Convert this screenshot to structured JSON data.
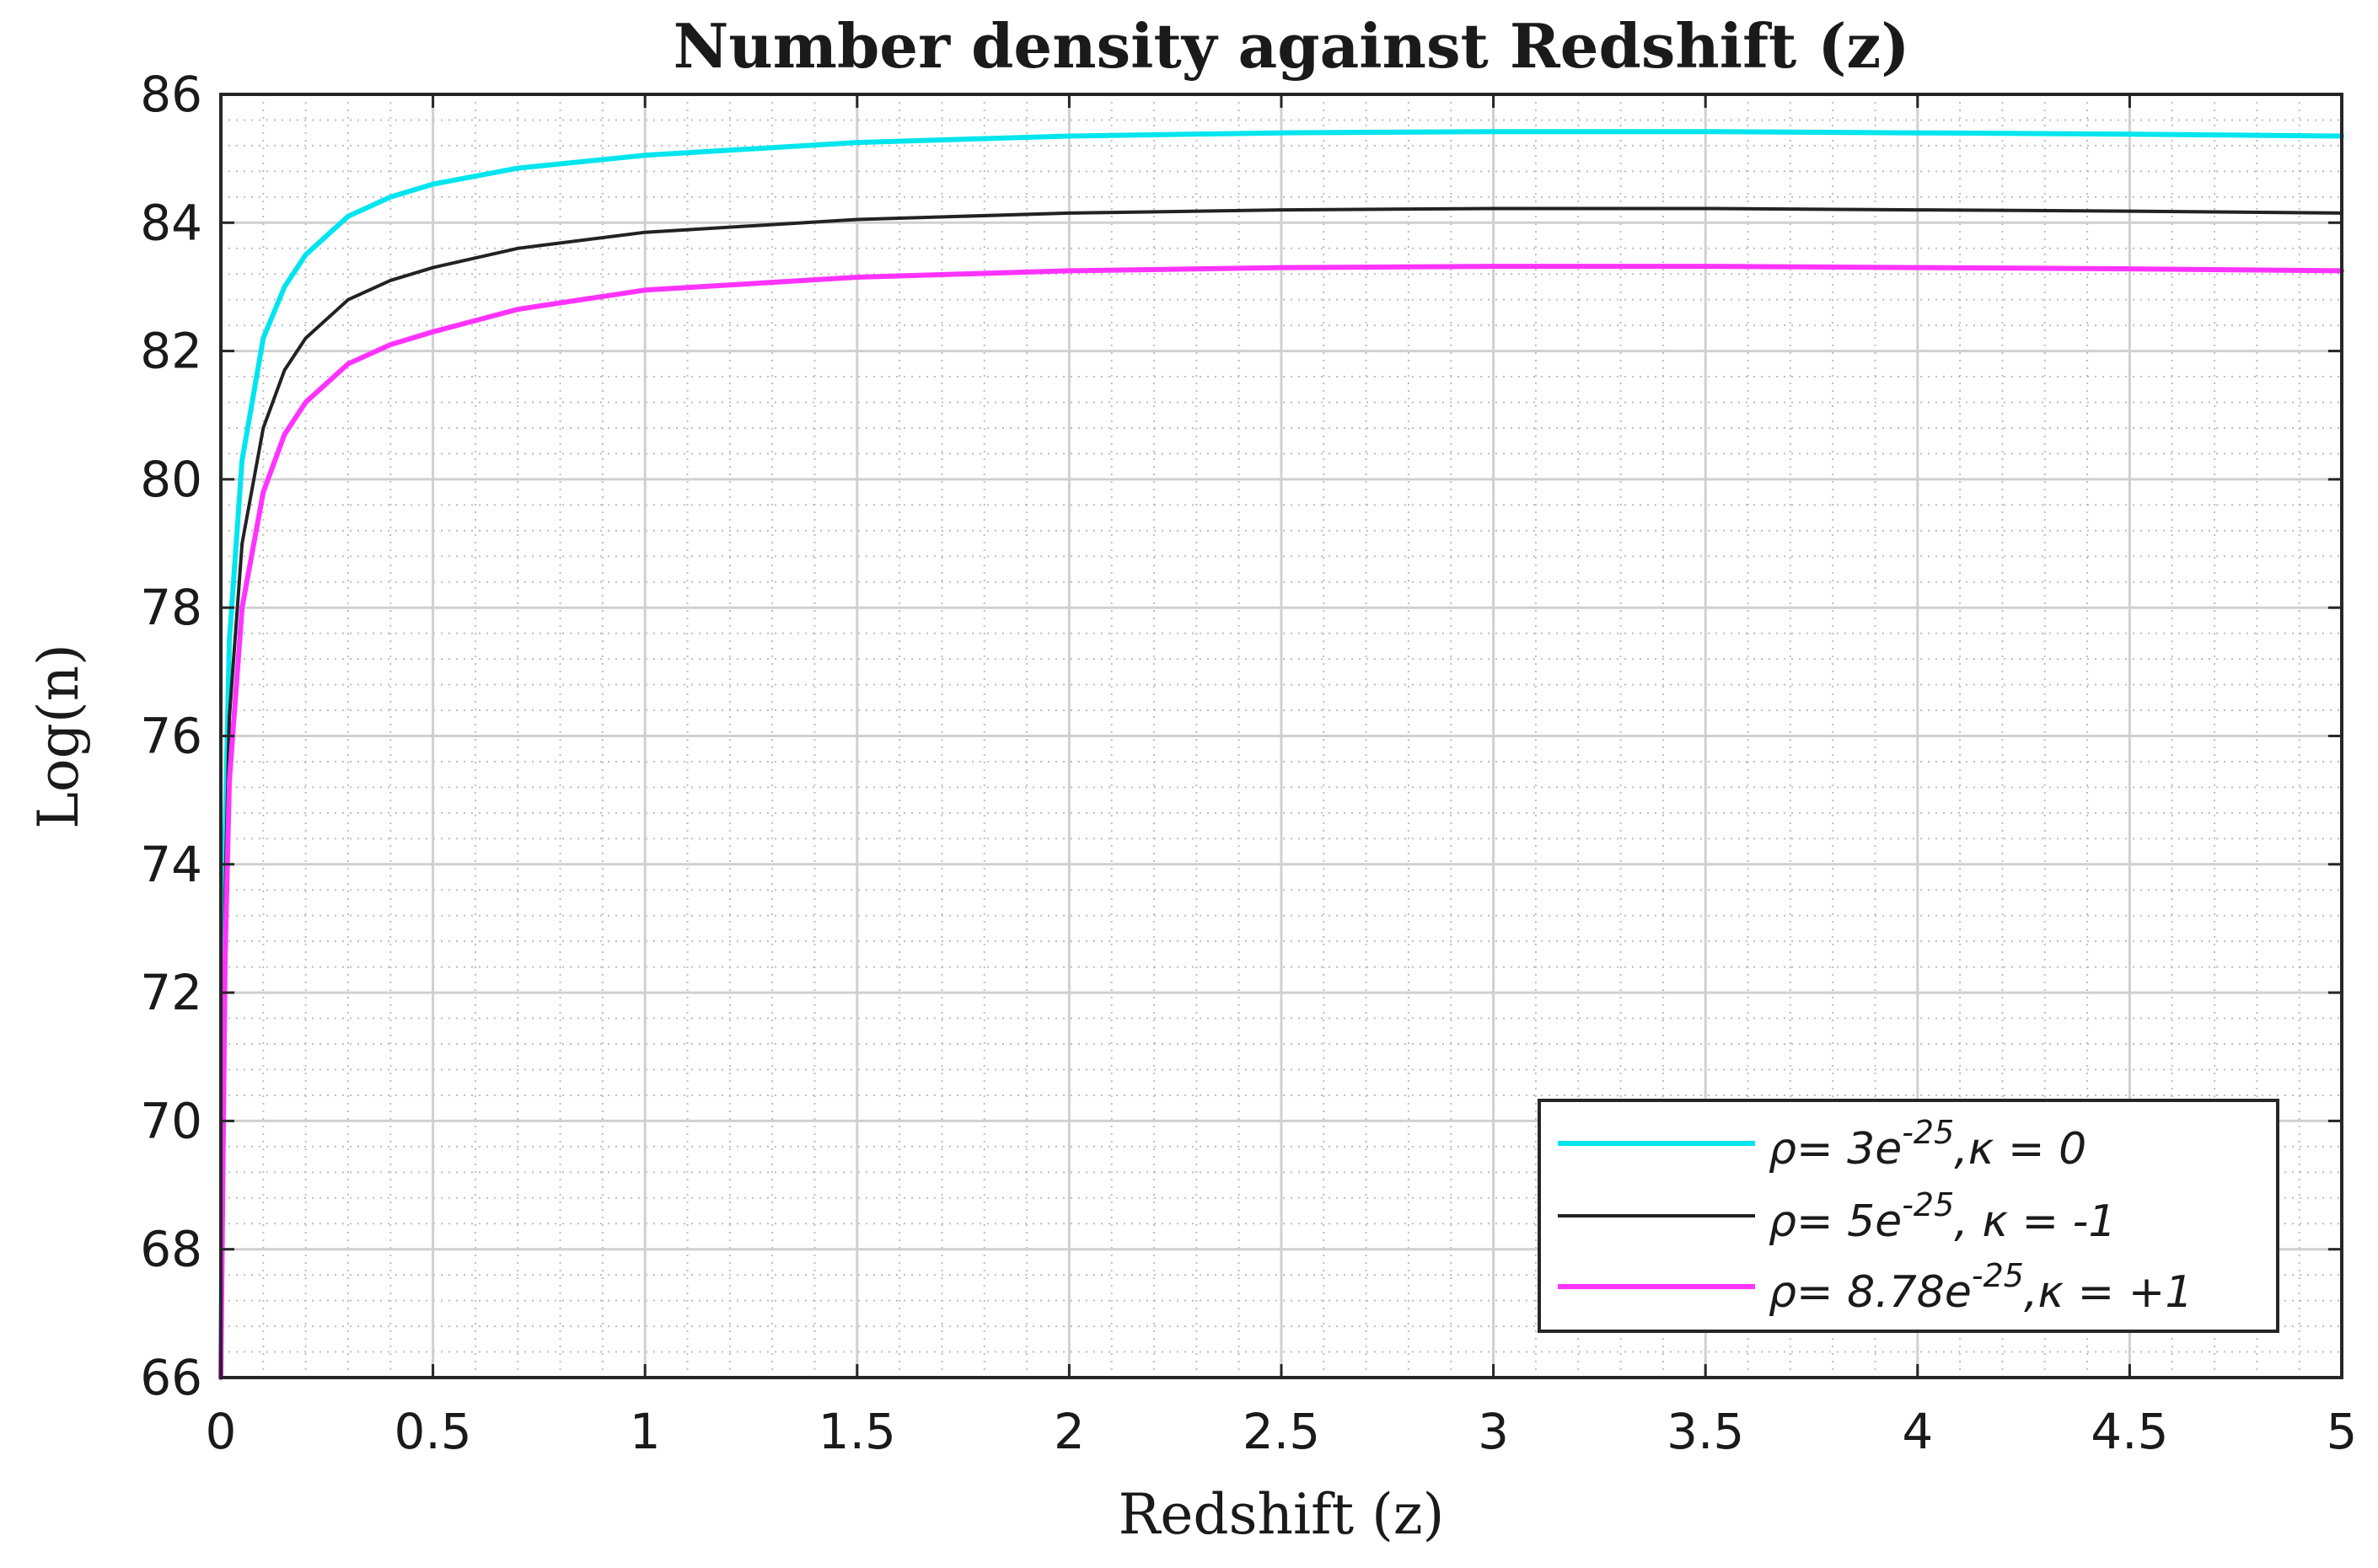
{
  "chart_data": {
    "type": "line",
    "title": "Number density against Redshift (z)",
    "xlabel": "Redshift (z)",
    "ylabel": "Log(n)",
    "xlim": [
      0,
      5
    ],
    "ylim": [
      66,
      86
    ],
    "x_ticks": [
      "0",
      "0.5",
      "1",
      "1.5",
      "2",
      "2.5",
      "3",
      "3.5",
      "4",
      "4.5",
      "5"
    ],
    "y_ticks": [
      "66",
      "68",
      "70",
      "72",
      "74",
      "76",
      "78",
      "80",
      "82",
      "84",
      "86"
    ],
    "grid": true,
    "minor_grid": true,
    "legend_position": "bottom-right",
    "series": [
      {
        "name": "ρ= 3e^-25, κ = 0",
        "legend": {
          "base": "ρ= 3e",
          "exp": "-25",
          "tail": ",κ = 0"
        },
        "color": "#00e5ee",
        "x": [
          0,
          0.01,
          0.02,
          0.05,
          0.1,
          0.15,
          0.2,
          0.3,
          0.4,
          0.5,
          0.7,
          1.0,
          1.5,
          2.0,
          2.5,
          3.0,
          3.5,
          4.0,
          4.5,
          5.0
        ],
        "y": [
          66,
          74.5,
          77.5,
          80.3,
          82.2,
          83.0,
          83.5,
          84.1,
          84.4,
          84.6,
          84.85,
          85.05,
          85.25,
          85.35,
          85.4,
          85.42,
          85.42,
          85.4,
          85.38,
          85.35
        ]
      },
      {
        "name": "ρ= 5e^-25, κ = -1",
        "legend": {
          "base": "ρ= 5e",
          "exp": "-25",
          "tail": ", κ = -1"
        },
        "color": "#222222",
        "x": [
          0,
          0.01,
          0.02,
          0.05,
          0.1,
          0.15,
          0.2,
          0.3,
          0.4,
          0.5,
          0.7,
          1.0,
          1.5,
          2.0,
          2.5,
          3.0,
          3.5,
          4.0,
          4.5,
          5.0
        ],
        "y": [
          66,
          73.5,
          76.3,
          79.0,
          80.8,
          81.7,
          82.2,
          82.8,
          83.1,
          83.3,
          83.6,
          83.85,
          84.05,
          84.15,
          84.2,
          84.22,
          84.22,
          84.2,
          84.18,
          84.15
        ]
      },
      {
        "name": "ρ= 8.78e^-25, κ = +1",
        "legend": {
          "base": "ρ= 8.78e",
          "exp": "-25",
          "tail": ",κ = +1"
        },
        "color": "#ff33ff",
        "x": [
          0,
          0.01,
          0.02,
          0.05,
          0.1,
          0.15,
          0.2,
          0.3,
          0.4,
          0.5,
          0.7,
          1.0,
          1.5,
          2.0,
          2.5,
          3.0,
          3.5,
          4.0,
          4.5,
          5.0
        ],
        "y": [
          66,
          72.5,
          75.3,
          78.0,
          79.8,
          80.7,
          81.2,
          81.8,
          82.1,
          82.3,
          82.65,
          82.95,
          83.15,
          83.25,
          83.3,
          83.32,
          83.32,
          83.3,
          83.28,
          83.25
        ]
      }
    ]
  }
}
